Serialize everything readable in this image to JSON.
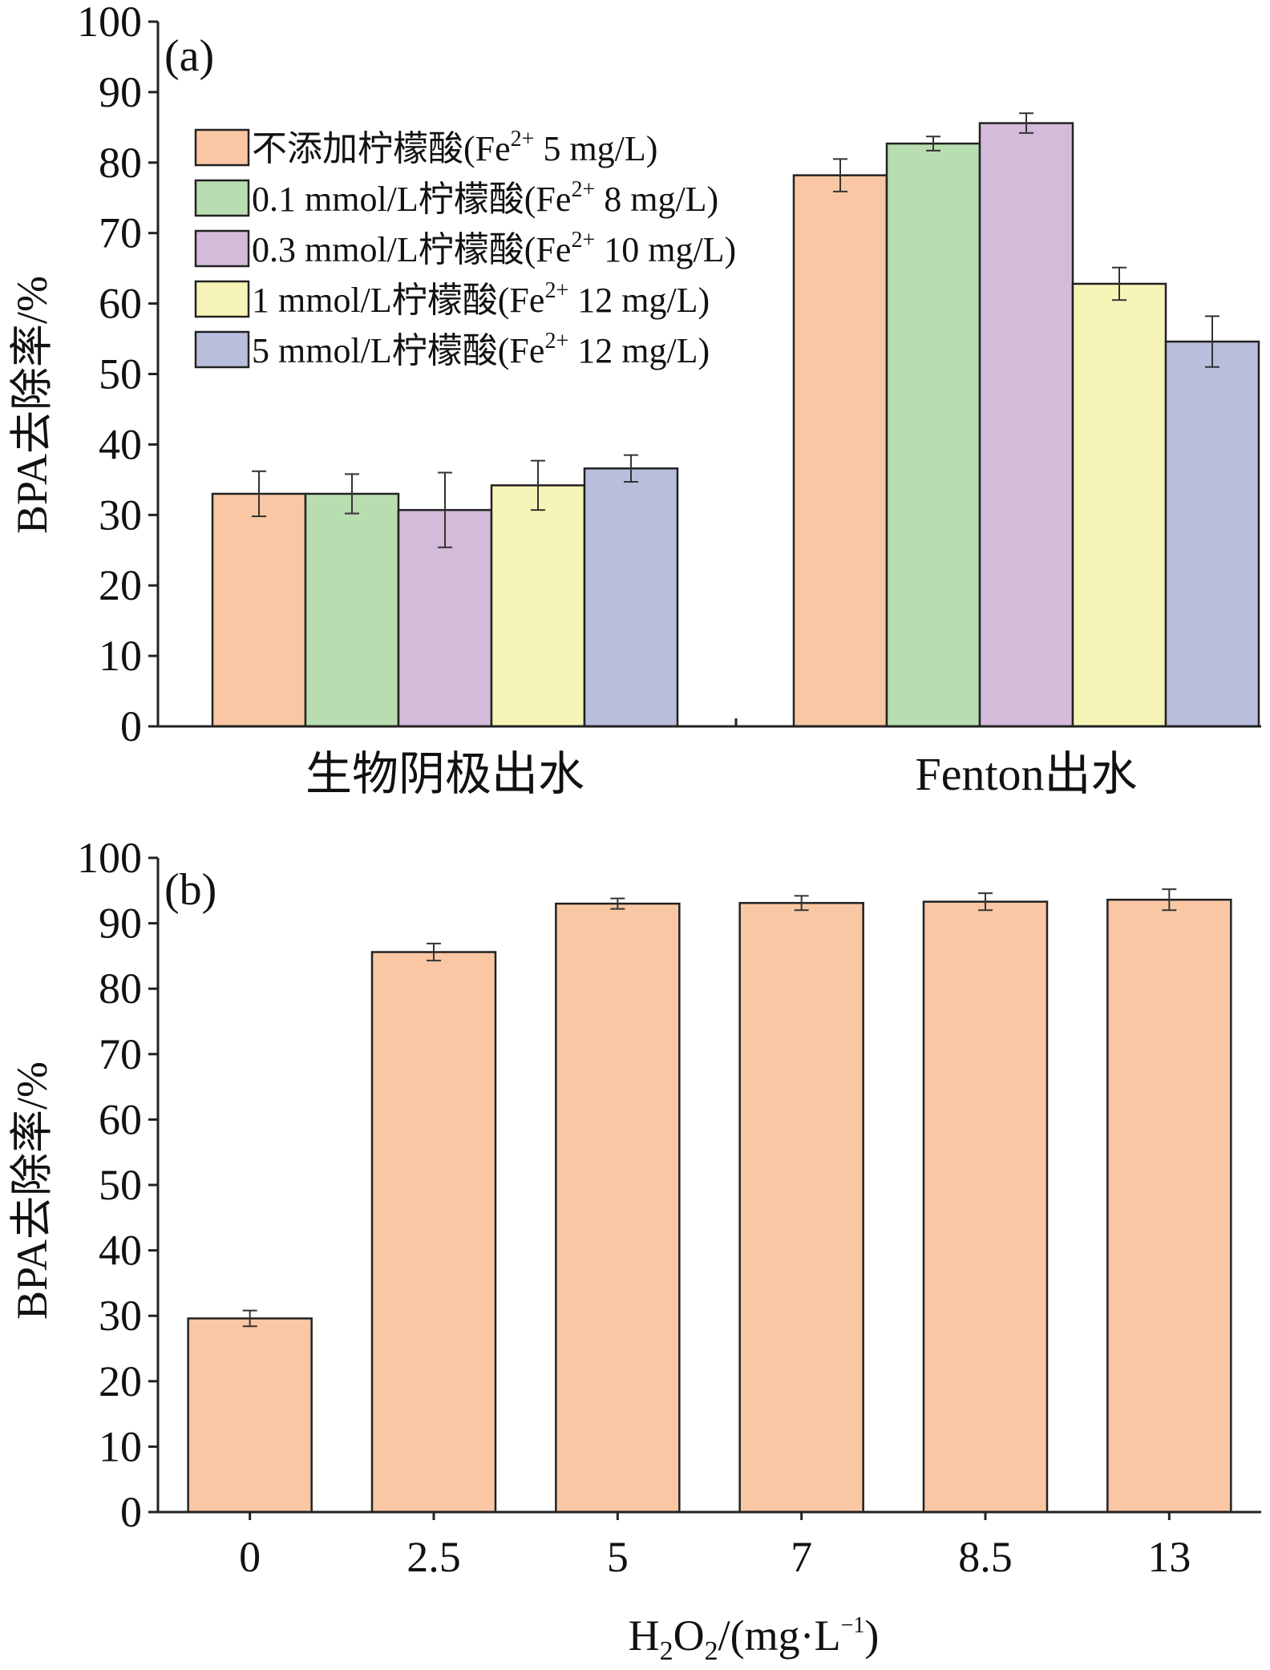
{
  "chart_data": [
    {
      "type": "bar",
      "panel_label": "(a)",
      "ylabel": "BPA去除率/%",
      "ylim": [
        0,
        100
      ],
      "yticks": [
        0,
        10,
        20,
        30,
        40,
        50,
        60,
        70,
        80,
        90,
        100
      ],
      "categories": [
        "生物阴极出水",
        "Fenton出水"
      ],
      "legend_position": "top-left",
      "series": [
        {
          "name": "不添加柠檬酸(Fe2+ 5 mg/L)",
          "legend_pre": "不添加柠檬酸(Fe",
          "legend_sup": "2+",
          "legend_post": " 5 mg/L)",
          "color": "#F9C7A3",
          "values": [
            33.0,
            78.2
          ],
          "errors": [
            3.2,
            2.3
          ]
        },
        {
          "name": "0.1 mmol/L柠檬酸(Fe2+ 8 mg/L)",
          "legend_pre": "0.1 mmol/L柠檬酸(Fe",
          "legend_sup": "2+",
          "legend_post": " 8 mg/L)",
          "color": "#B8DDB0",
          "values": [
            33.0,
            82.7
          ],
          "errors": [
            2.8,
            1.0
          ]
        },
        {
          "name": "0.3 mmol/L柠檬酸(Fe2+ 10 mg/L)",
          "legend_pre": "0.3 mmol/L柠檬酸(Fe",
          "legend_sup": "2+",
          "legend_post": " 10 mg/L)",
          "color": "#D4BBD9",
          "values": [
            30.7,
            85.6
          ],
          "errors": [
            5.3,
            1.4
          ]
        },
        {
          "name": "1 mmol/L柠檬酸(Fe2+ 12 mg/L)",
          "legend_pre": "1 mmol/L柠檬酸(Fe",
          "legend_sup": "2+",
          "legend_post": " 12 mg/L)",
          "color": "#F7F4B7",
          "values": [
            34.2,
            62.8
          ],
          "errors": [
            3.5,
            2.3
          ]
        },
        {
          "name": "5 mmol/L柠檬酸(Fe2+ 12 mg/L)",
          "legend_pre": "5 mmol/L柠檬酸(Fe",
          "legend_sup": "2+",
          "legend_post": " 12 mg/L)",
          "color": "#B8BEDC",
          "values": [
            36.6,
            54.6
          ],
          "errors": [
            1.9,
            3.6
          ]
        }
      ]
    },
    {
      "type": "bar",
      "panel_label": "(b)",
      "ylabel": "BPA去除率/%",
      "xlabel": "H2O2/(mg·L−1)",
      "xlabel_parts": {
        "h": "H",
        "s1": "2",
        "o": "O",
        "s2": "2",
        "rest": "/(mg·L",
        "sup": "−1",
        "close": ")"
      },
      "ylim": [
        0,
        100
      ],
      "yticks": [
        0,
        10,
        20,
        30,
        40,
        50,
        60,
        70,
        80,
        90,
        100
      ],
      "categories": [
        "0",
        "2.5",
        "5",
        "7",
        "8.5",
        "13"
      ],
      "color": "#F9C7A3",
      "values": [
        29.6,
        85.6,
        93.0,
        93.1,
        93.3,
        93.6
      ],
      "errors": [
        1.2,
        1.3,
        0.8,
        1.1,
        1.3,
        1.6
      ]
    }
  ]
}
